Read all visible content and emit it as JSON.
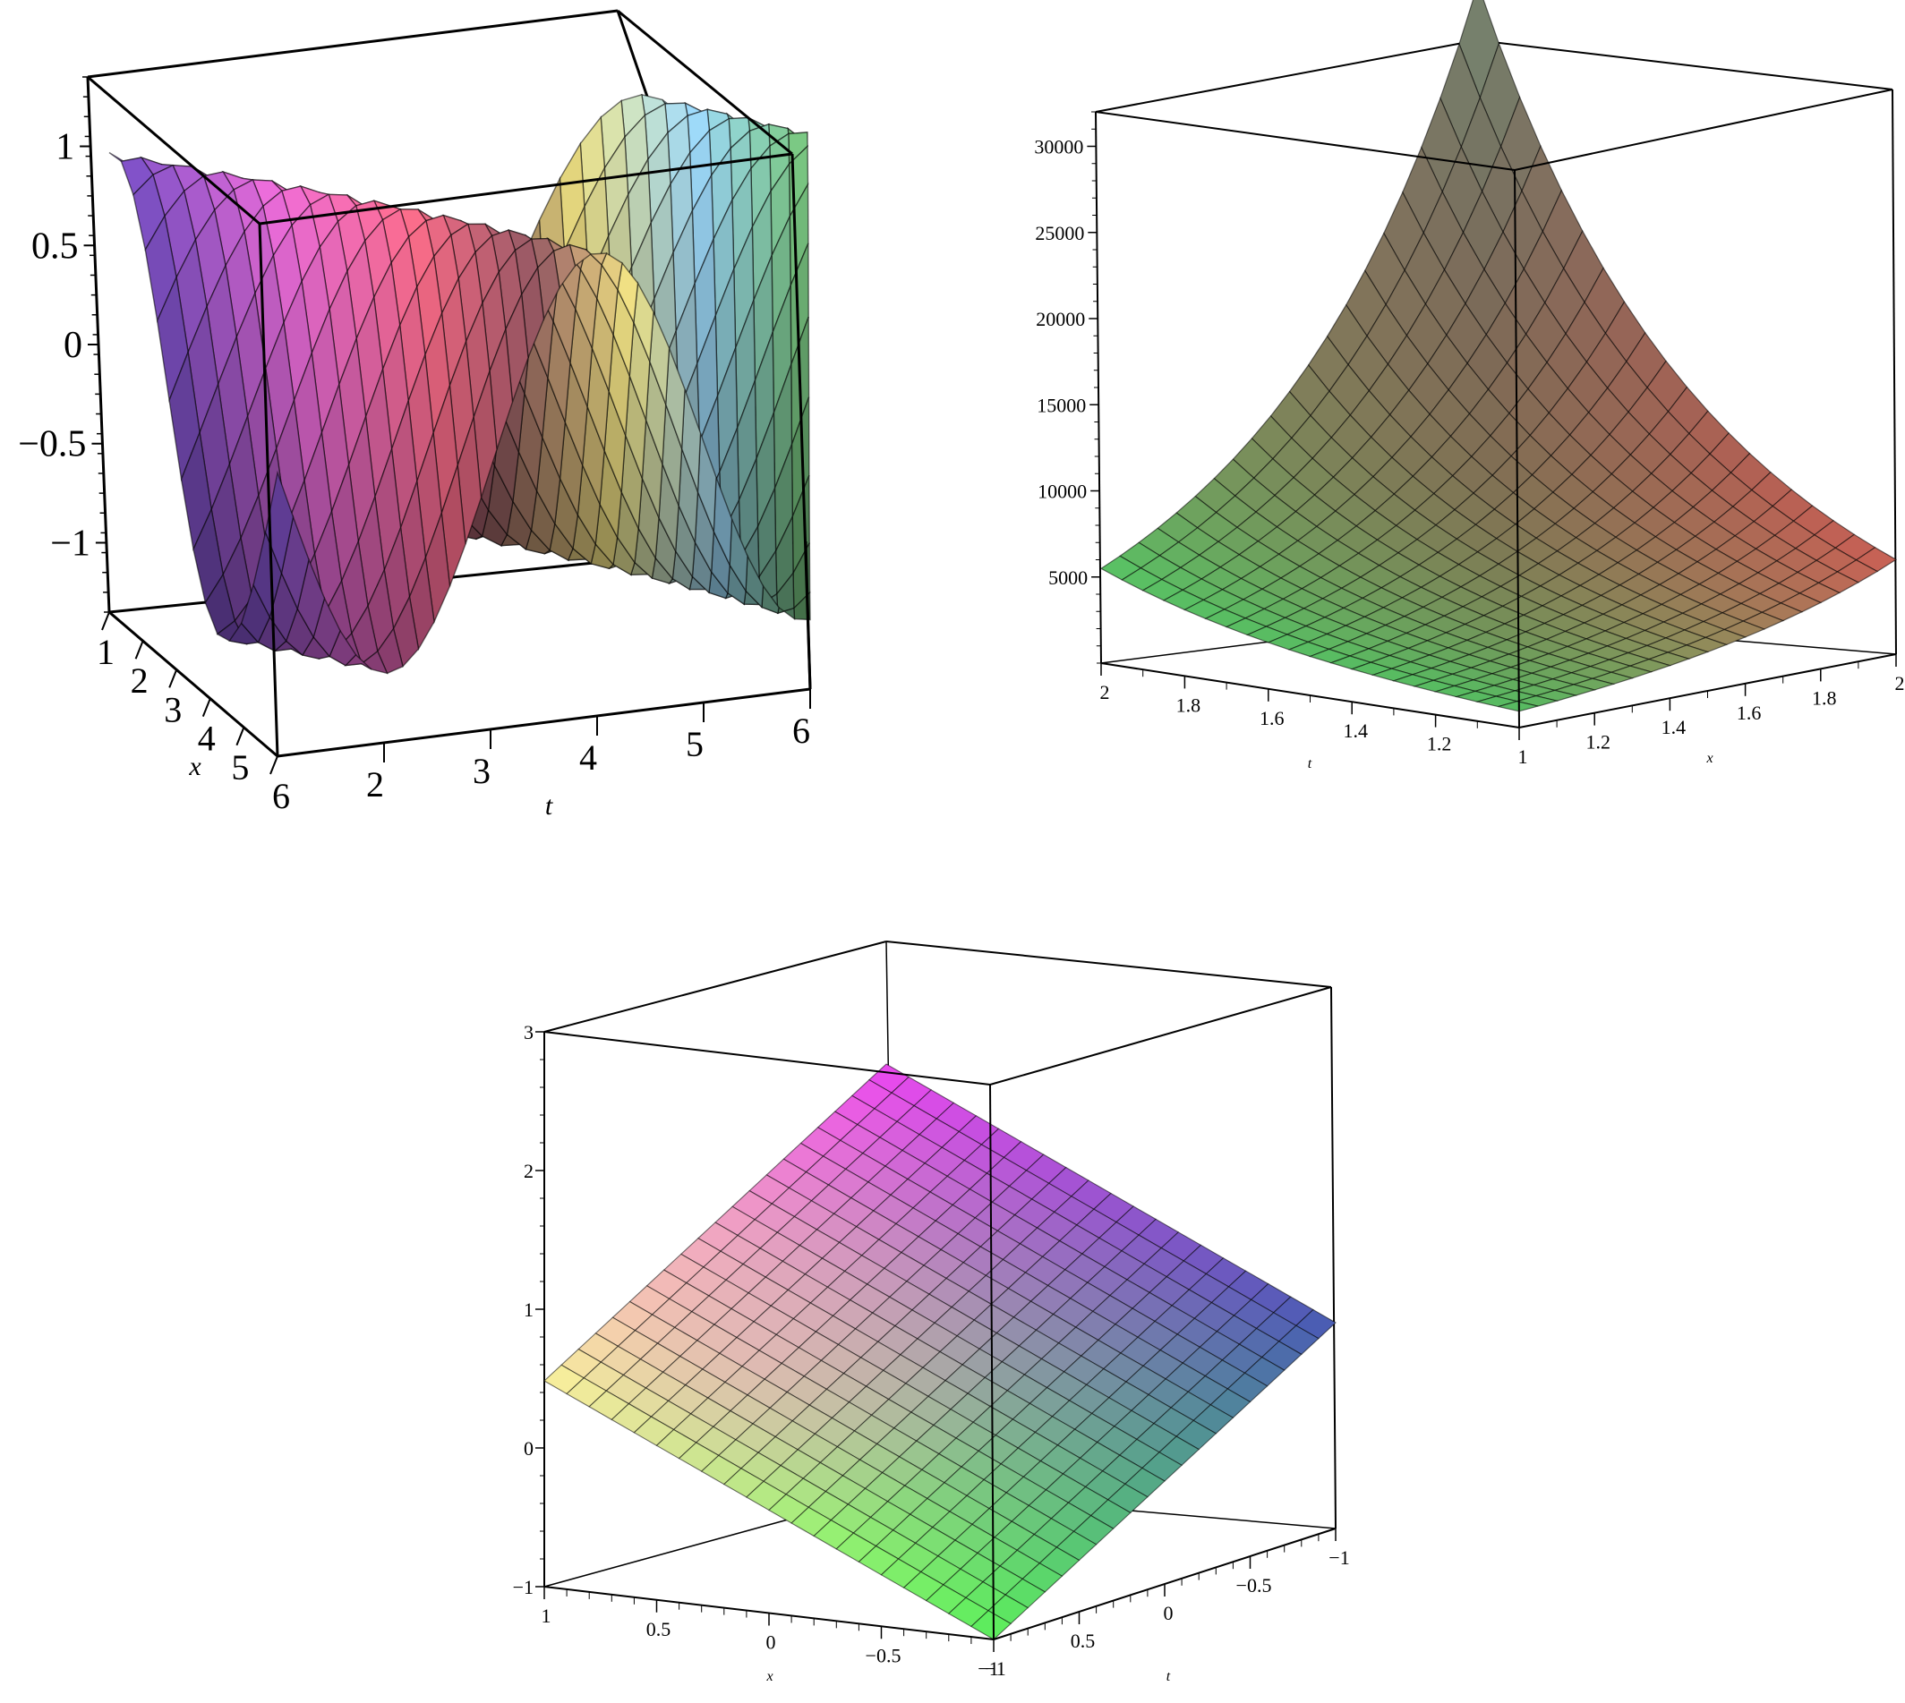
{
  "chart_data": [
    {
      "type": "surface3d",
      "function": "cos(x - t)",
      "x_range": [
        1,
        6
      ],
      "t_range": [
        1,
        6
      ],
      "z_ticks": [
        {
          "value": 1,
          "label": "1"
        },
        {
          "value": 0.5,
          "label": "0.5"
        },
        {
          "value": 0,
          "label": "0"
        },
        {
          "value": -0.5,
          "label": "−0.5"
        },
        {
          "value": -1,
          "label": "−1"
        }
      ],
      "x_ticks": [
        "1",
        "2",
        "3",
        "4",
        "5",
        "6"
      ],
      "t_ticks": [
        "2",
        "3",
        "4",
        "5",
        "6"
      ],
      "xlabel": "x",
      "tlabel": "t",
      "zlim": [
        -1.35,
        1.35
      ]
    },
    {
      "type": "surface3d",
      "function": "exp-like growth, max ~32000 at x=2,t=2",
      "x_range": [
        1,
        2
      ],
      "t_range": [
        1,
        2
      ],
      "z_ticks": [
        {
          "value": 30000,
          "label": "30000"
        },
        {
          "value": 25000,
          "label": "25000"
        },
        {
          "value": 20000,
          "label": "20000"
        },
        {
          "value": 15000,
          "label": "15000"
        },
        {
          "value": 10000,
          "label": "10000"
        },
        {
          "value": 5000,
          "label": "5000"
        }
      ],
      "t_ticks": [
        "2",
        "1.8",
        "1.6",
        "1.4",
        "1.2"
      ],
      "x_ticks": [
        "1",
        "1.2",
        "1.4",
        "1.6",
        "1.8",
        "2"
      ],
      "xlabel": "x",
      "tlabel": "t",
      "zlim": [
        0,
        32000
      ]
    },
    {
      "type": "surface3d",
      "function": "1 + x - t (planar)",
      "x_range": [
        -1,
        1
      ],
      "t_range": [
        -1,
        1
      ],
      "z_ticks": [
        {
          "value": 3,
          "label": "3"
        },
        {
          "value": 2,
          "label": "2"
        },
        {
          "value": 1,
          "label": "1"
        },
        {
          "value": 0,
          "label": "0"
        },
        {
          "value": -1,
          "label": "−1"
        }
      ],
      "x_ticks": [
        "1",
        "0.5",
        "0",
        "−0.5",
        "−1"
      ],
      "t_ticks": [
        "0.5",
        "0",
        "−0.5",
        "−1"
      ],
      "xlabel": "x",
      "tlabel": "t",
      "zlim": [
        -1,
        3
      ]
    }
  ]
}
